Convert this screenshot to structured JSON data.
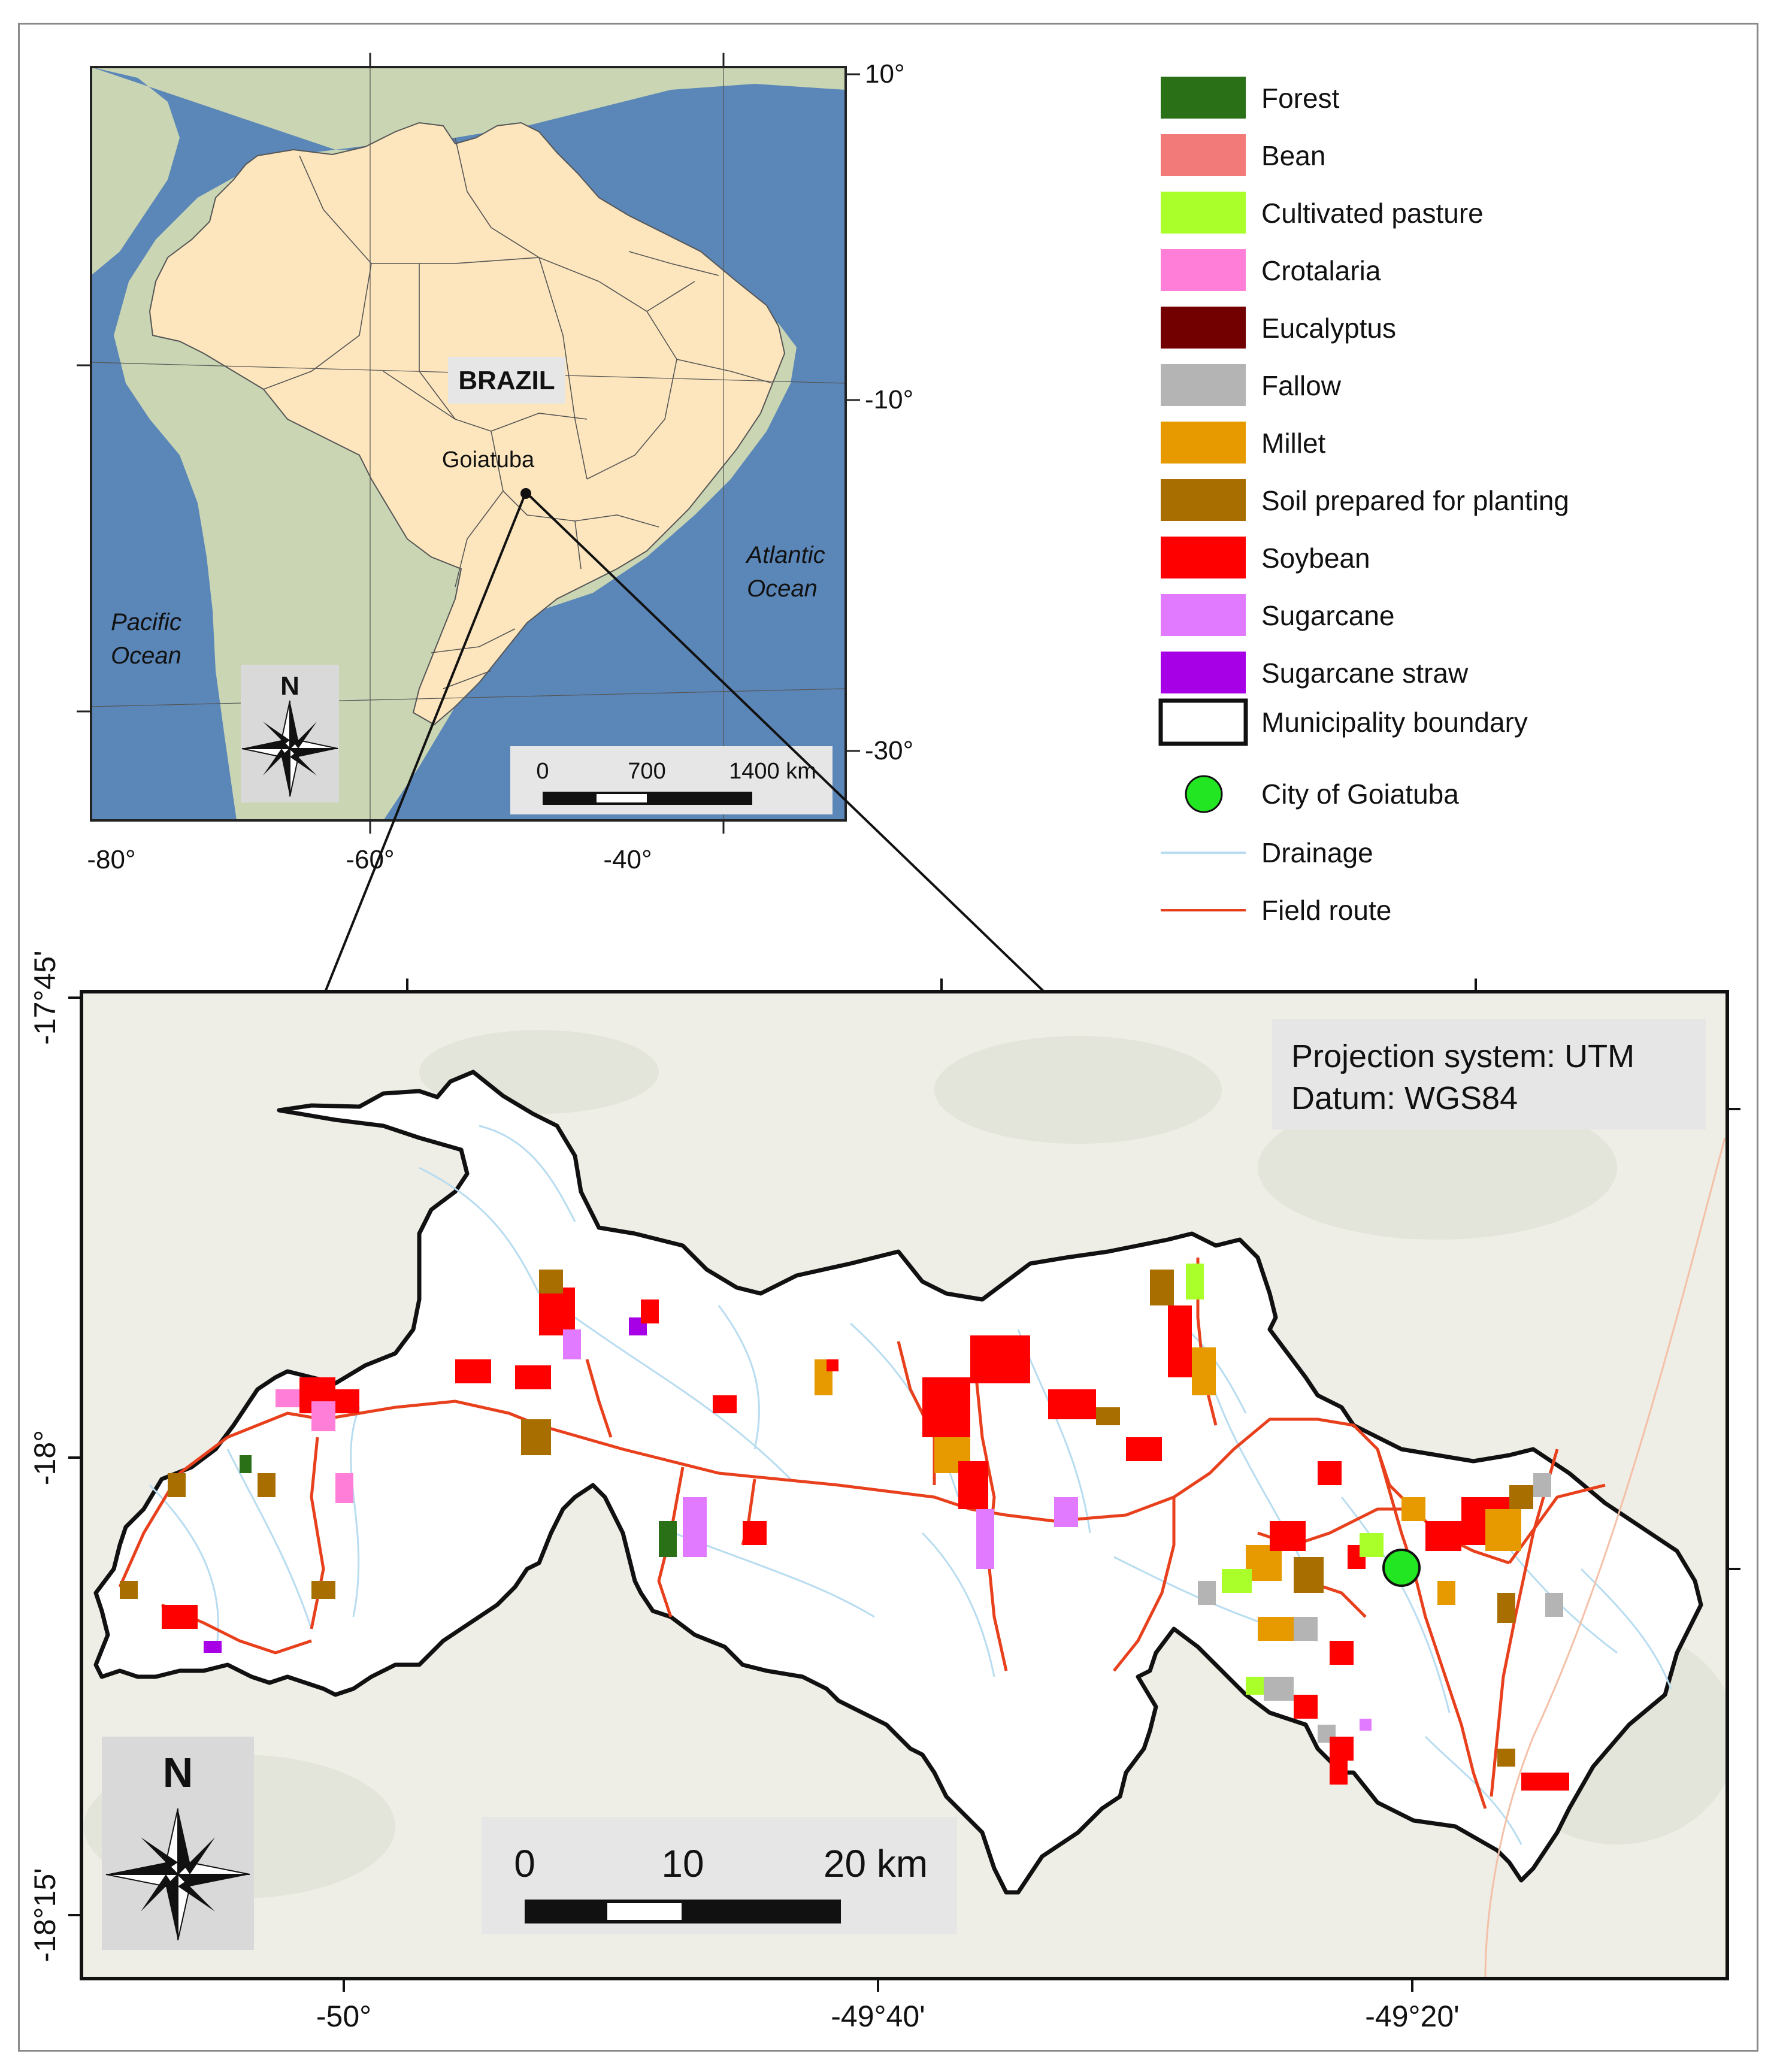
{
  "inset": {
    "country_label": "BRAZIL",
    "city_label": "Goiatuba",
    "ocean_pacific": [
      "Pacific",
      "Ocean"
    ],
    "ocean_atlantic": [
      "Atlantic",
      "Ocean"
    ],
    "lat_ticks": [
      "10°",
      "-10°",
      "-30°"
    ],
    "lon_ticks": [
      "-80°",
      "-60°",
      "-40°"
    ],
    "north_label": "N",
    "scale": {
      "labels": [
        "0",
        "700",
        "1400 km"
      ]
    },
    "colors": {
      "ocean": "#5b86b8",
      "land_other": "#c9d5b3",
      "brazil": "#fde6bd"
    }
  },
  "legend": {
    "items": [
      {
        "label": "Forest",
        "color": "#2a7016"
      },
      {
        "label": "Bean",
        "color": "#f27a78"
      },
      {
        "label": "Cultivated pasture",
        "color": "#aaff2a"
      },
      {
        "label": "Crotalaria",
        "color": "#ff7fd8"
      },
      {
        "label": "Eucalyptus",
        "color": "#720000"
      },
      {
        "label": "Fallow",
        "color": "#b4b4b4"
      },
      {
        "label": "Millet",
        "color": "#e69a00"
      },
      {
        "label": "Soil prepared for planting",
        "color": "#a86f00"
      },
      {
        "label": "Soybean",
        "color": "#ff0000"
      },
      {
        "label": "Sugarcane",
        "color": "#e27aff"
      },
      {
        "label": "Sugarcane straw",
        "color": "#a800e6"
      }
    ],
    "boundary_label": "Municipality boundary",
    "city_label": "City of Goiatuba",
    "drainage_label": "Drainage",
    "route_label": "Field route",
    "colors": {
      "city": "#22e622",
      "drainage": "#b8dcf0",
      "route": "#e8401c"
    }
  },
  "main_map": {
    "projection_lines": [
      "Projection system: UTM",
      "Datum: WGS84"
    ],
    "lat_ticks": [
      "-17°45'",
      "-18°",
      "-18°15'"
    ],
    "lon_ticks": [
      "-50°",
      "-49°40'",
      "-49°20'"
    ],
    "north_label": "N",
    "scale": {
      "labels": [
        "0",
        "10",
        "20 km"
      ]
    }
  }
}
